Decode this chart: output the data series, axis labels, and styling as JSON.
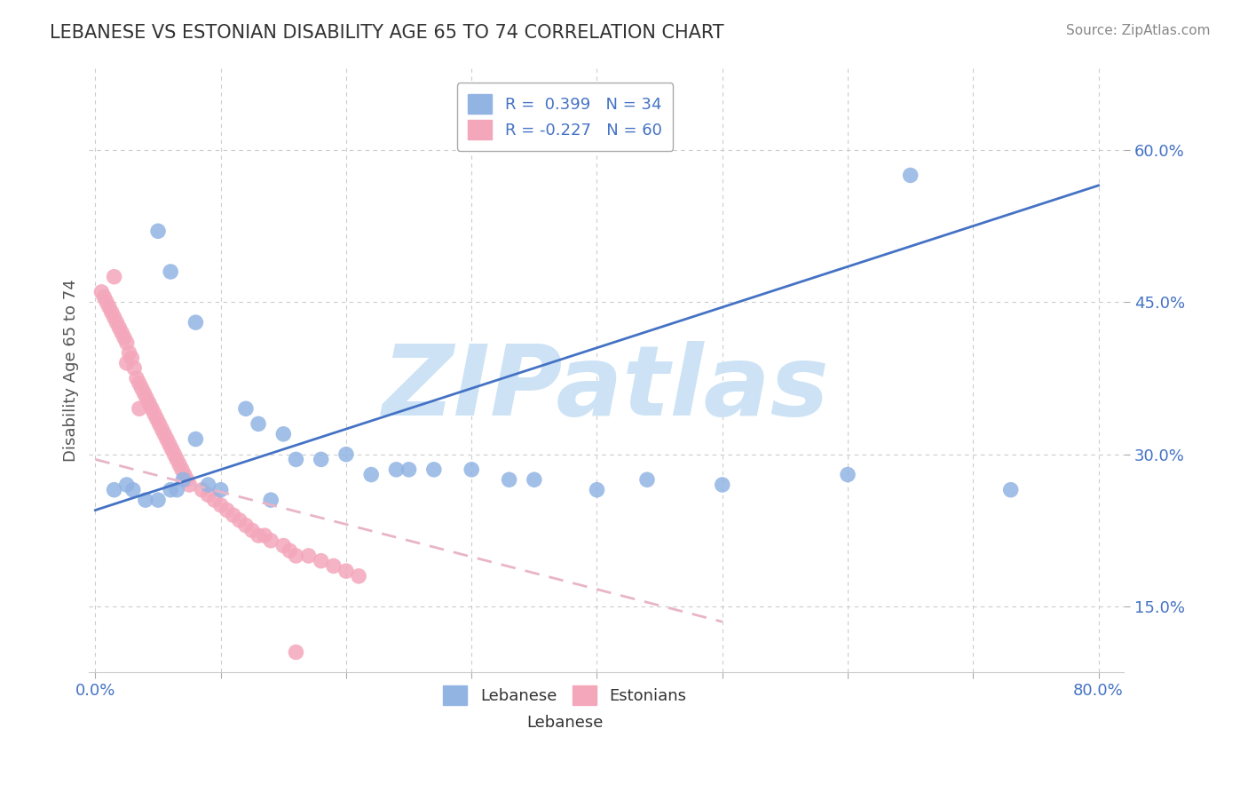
{
  "title": "LEBANESE VS ESTONIAN DISABILITY AGE 65 TO 74 CORRELATION CHART",
  "source": "Source: ZipAtlas.com",
  "ylabel": "Disability Age 65 to 74",
  "xlim": [
    -0.005,
    0.82
  ],
  "ylim": [
    0.085,
    0.68
  ],
  "xticks": [
    0.0,
    0.1,
    0.2,
    0.3,
    0.4,
    0.5,
    0.6,
    0.7,
    0.8
  ],
  "yticks_right": [
    0.15,
    0.3,
    0.45,
    0.6
  ],
  "ytick_labels_right": [
    "15.0%",
    "30.0%",
    "45.0%",
    "60.0%"
  ],
  "legend_label_leb": "R =  0.399   N = 34",
  "legend_label_est": "R = -0.227   N = 60",
  "lebanese_color": "#92b4e3",
  "estonian_color": "#f4a7bb",
  "lebanese_line_color": "#4472c4",
  "estonian_line_color": "#e8b4c8",
  "watermark": "ZIPatlas",
  "watermark_color": "#cde3f5",
  "background_color": "#ffffff",
  "grid_color": "#cccccc",
  "title_color": "#333333",
  "axis_label_color": "#4472c4",
  "ylabel_color": "#555555",
  "lebanese_x": [
    0.015,
    0.025,
    0.03,
    0.04,
    0.05,
    0.06,
    0.065,
    0.07,
    0.08,
    0.09,
    0.1,
    0.12,
    0.13,
    0.14,
    0.15,
    0.16,
    0.18,
    0.2,
    0.22,
    0.24,
    0.25,
    0.27,
    0.3,
    0.33,
    0.35,
    0.4,
    0.44,
    0.5,
    0.6,
    0.73,
    0.05,
    0.06,
    0.08,
    0.65
  ],
  "lebanese_y": [
    0.265,
    0.27,
    0.265,
    0.255,
    0.255,
    0.265,
    0.265,
    0.275,
    0.315,
    0.27,
    0.265,
    0.345,
    0.33,
    0.255,
    0.32,
    0.295,
    0.295,
    0.3,
    0.28,
    0.285,
    0.285,
    0.285,
    0.285,
    0.275,
    0.275,
    0.265,
    0.275,
    0.27,
    0.28,
    0.265,
    0.52,
    0.48,
    0.43,
    0.575
  ],
  "estonian_x": [
    0.005,
    0.007,
    0.009,
    0.011,
    0.013,
    0.015,
    0.017,
    0.019,
    0.021,
    0.023,
    0.025,
    0.027,
    0.029,
    0.031,
    0.033,
    0.035,
    0.037,
    0.039,
    0.041,
    0.043,
    0.045,
    0.047,
    0.049,
    0.051,
    0.053,
    0.055,
    0.057,
    0.059,
    0.061,
    0.063,
    0.065,
    0.067,
    0.069,
    0.071,
    0.073,
    0.075,
    0.085,
    0.09,
    0.095,
    0.1,
    0.105,
    0.11,
    0.115,
    0.12,
    0.125,
    0.13,
    0.135,
    0.14,
    0.15,
    0.155,
    0.16,
    0.17,
    0.18,
    0.19,
    0.2,
    0.21,
    0.015,
    0.025,
    0.035,
    0.16
  ],
  "estonian_y": [
    0.46,
    0.455,
    0.45,
    0.445,
    0.44,
    0.435,
    0.43,
    0.425,
    0.42,
    0.415,
    0.41,
    0.4,
    0.395,
    0.385,
    0.375,
    0.37,
    0.365,
    0.36,
    0.355,
    0.35,
    0.345,
    0.34,
    0.335,
    0.33,
    0.325,
    0.32,
    0.315,
    0.31,
    0.305,
    0.3,
    0.295,
    0.29,
    0.285,
    0.28,
    0.275,
    0.27,
    0.265,
    0.26,
    0.255,
    0.25,
    0.245,
    0.24,
    0.235,
    0.23,
    0.225,
    0.22,
    0.22,
    0.215,
    0.21,
    0.205,
    0.2,
    0.2,
    0.195,
    0.19,
    0.185,
    0.18,
    0.475,
    0.39,
    0.345,
    0.105
  ],
  "lebanese_trend_x": [
    0.0,
    0.8
  ],
  "lebanese_trend_y": [
    0.245,
    0.565
  ],
  "estonian_trend_x": [
    0.0,
    0.5
  ],
  "estonian_trend_y": [
    0.295,
    0.135
  ]
}
